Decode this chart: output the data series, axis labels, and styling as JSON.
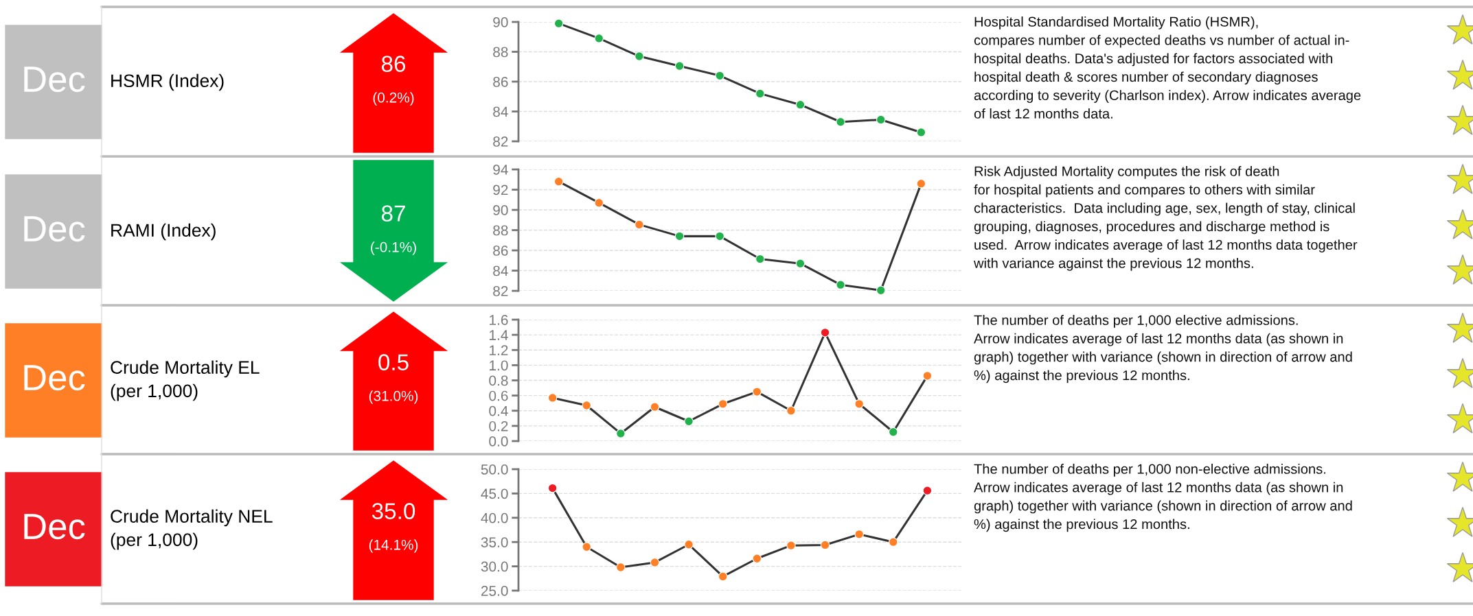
{
  "chart_data": [
    {
      "type": "line",
      "categories": [
        null,
        null,
        null,
        null,
        null,
        null,
        null,
        null,
        null,
        null
      ],
      "series": [
        {
          "color": "#333333",
          "colors": [
            "#22b14c",
            "#22b14c",
            "#22b14c",
            "#22b14c",
            "#22b14c",
            "#22b14c",
            "#22b14c",
            "#22b14c",
            "#22b14c",
            "#22b14c"
          ],
          "values": [
            89.9,
            88.9,
            87.7,
            87.05,
            86.4,
            85.2,
            84.45,
            83.3,
            83.45,
            82.6
          ]
        }
      ],
      "ylim": [
        82,
        90
      ],
      "yticks": [
        82,
        84,
        86,
        88,
        90
      ],
      "grid": "y",
      "tick_labels": "y",
      "marker": "circle",
      "line_style": "solid",
      "annotations": [
        "Dec",
        "HSMR (Index)",
        "86",
        "(0.2%)",
        "Hospital Standardised Mortality Ratio (HSMR),\ncompares number of expected deaths vs number of actual in-\nhospital deaths. Data's adjusted for factors associated with\nhospital death & scores number of secondary diagnoses\naccording to severity (Charlson index). Arrow indicates average\nof last 12 months data."
      ]
    },
    {
      "type": "line",
      "categories": [
        null,
        null,
        null,
        null,
        null,
        null,
        null,
        null,
        null,
        null
      ],
      "series": [
        {
          "color": "#333333",
          "colors": [
            "#ff7f27",
            "#ff7f27",
            "#ff7f27",
            "#22b14c",
            "#22b14c",
            "#22b14c",
            "#22b14c",
            "#22b14c",
            "#22b14c",
            "#ff7f27"
          ],
          "values": [
            92.8,
            90.7,
            88.55,
            87.4,
            87.4,
            85.15,
            84.7,
            82.6,
            82.05,
            92.6
          ]
        }
      ],
      "ylim": [
        82,
        94
      ],
      "yticks": [
        82,
        84,
        86,
        88,
        90,
        92,
        94
      ],
      "grid": "y",
      "tick_labels": "y",
      "marker": "circle",
      "line_style": "solid",
      "annotations": [
        "Dec",
        "RAMI (Index)",
        "87",
        "(-0.1%)",
        "Risk Adjusted Mortality computes the risk of death\nfor hospital patients and compares to others with similar\ncharacteristics.  Data including age, sex, length of stay, clinical\ngrouping, diagnoses, procedures and discharge method is\nused.  Arrow indicates average of last 12 months data together\nwith variance against the previous 12 months."
      ]
    },
    {
      "type": "line",
      "categories": [
        null,
        null,
        null,
        null,
        null,
        null,
        null,
        null,
        null,
        null,
        null,
        null
      ],
      "series": [
        {
          "color": "#333333",
          "colors": [
            "#ff7f27",
            "#ff7f27",
            "#22b14c",
            "#ff7f27",
            "#22b14c",
            "#ff7f27",
            "#ff7f27",
            "#ff7f27",
            "#ed1c24",
            "#ff7f27",
            "#22b14c",
            "#ff7f27"
          ],
          "values": [
            0.57,
            0.47,
            0.1,
            0.45,
            0.26,
            0.49,
            0.65,
            0.4,
            1.43,
            0.49,
            0.12,
            0.86
          ]
        }
      ],
      "ylim": [
        0.0,
        1.6
      ],
      "yticks": [
        {
          "value": 0,
          "label": "0.0"
        },
        0.2,
        0.4,
        0.6,
        0.8,
        {
          "value": 1,
          "label": "1.0"
        },
        1.2,
        1.4,
        1.6
      ],
      "grid": "y",
      "tick_labels": "y",
      "marker": "circle",
      "line_style": "solid",
      "annotations": [
        "Dec",
        "Crude Mortality EL\n(per 1,000)",
        "0.5",
        "(31.0%)",
        "The number of deaths per 1,000 elective admissions.\nArrow indicates average of last 12 months data (as shown in\ngraph) together with variance (shown in direction of arrow and\n%) against the previous 12 months."
      ]
    },
    {
      "type": "line",
      "categories": [
        null,
        null,
        null,
        null,
        null,
        null,
        null,
        null,
        null,
        null,
        null,
        null
      ],
      "series": [
        {
          "color": "#333333",
          "colors": [
            "#ed1c24",
            "#ff7f27",
            "#ff7f27",
            "#ff7f27",
            "#ff7f27",
            "#ff7f27",
            "#ff7f27",
            "#ff7f27",
            "#ff7f27",
            "#ff7f27",
            "#ff7f27",
            "#ed1c24"
          ],
          "values": [
            46.1,
            34.0,
            29.8,
            30.8,
            34.5,
            27.9,
            31.6,
            34.3,
            34.4,
            36.6,
            35.0,
            45.6
          ]
        }
      ],
      "ylim": [
        25.0,
        50.0
      ],
      "yticks": [
        {
          "value": 25,
          "label": "25.0"
        },
        {
          "value": 30,
          "label": "30.0"
        },
        {
          "value": 35,
          "label": "35.0"
        },
        {
          "value": 40,
          "label": "40.0"
        },
        {
          "value": 45,
          "label": "45.0"
        },
        {
          "value": 50,
          "label": "50.0"
        }
      ],
      "grid": "y",
      "tick_labels": "y",
      "marker": "circle",
      "line_style": "solid",
      "annotations": [
        "Dec",
        "Crude Mortality NEL\n(per 1,000)",
        "35.0",
        "(14.1%)",
        "The number of deaths per 1,000 non-elective admissions.\nArrow indicates average of last 12 months data (as shown in\ngraph) together with variance (shown in direction of arrow and\n%) against the previous 12 months."
      ]
    }
  ]
}
